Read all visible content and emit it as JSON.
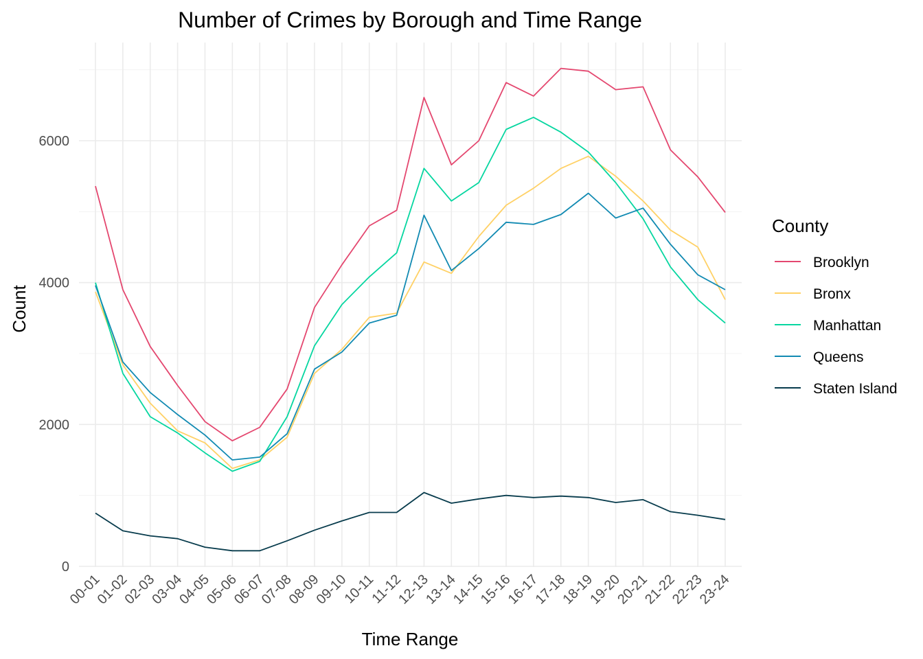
{
  "chart_data": {
    "type": "line",
    "title": "Number of Crimes by Borough and Time Range",
    "xlabel": "Time Range",
    "ylabel": "Count",
    "ylim": [
      0,
      7000
    ],
    "yticks": [
      0,
      2000,
      4000,
      6000
    ],
    "ytick_labels": [
      "0",
      "2000",
      "4000",
      "6000"
    ],
    "grid": true,
    "legend": {
      "title": "County",
      "position": "right"
    },
    "categories": [
      "00-01",
      "01-02",
      "02-03",
      "03-04",
      "04-05",
      "05-06",
      "06-07",
      "07-08",
      "08-09",
      "09-10",
      "10-11",
      "11-12",
      "12-13",
      "13-14",
      "14-15",
      "15-16",
      "16-17",
      "17-18",
      "18-19",
      "19-20",
      "20-21",
      "21-22",
      "22-23",
      "23-24"
    ],
    "series": [
      {
        "name": "Brooklyn",
        "color": "#e4476f",
        "values": [
          5360,
          3900,
          3100,
          2550,
          2040,
          1770,
          1960,
          2500,
          3650,
          4250,
          4800,
          5020,
          6610,
          5660,
          6000,
          6820,
          6630,
          7020,
          6980,
          6720,
          6760,
          5870,
          5490,
          4990
        ]
      },
      {
        "name": "Bronx",
        "color": "#ffd166",
        "values": [
          3870,
          2840,
          2300,
          1910,
          1740,
          1380,
          1500,
          1820,
          2720,
          3060,
          3510,
          3570,
          4290,
          4130,
          4650,
          5090,
          5330,
          5610,
          5780,
          5500,
          5150,
          4740,
          4500,
          3760
        ]
      },
      {
        "name": "Manhattan",
        "color": "#06d6a0",
        "values": [
          4000,
          2720,
          2110,
          1880,
          1600,
          1340,
          1480,
          2110,
          3110,
          3690,
          4080,
          4420,
          5610,
          5150,
          5410,
          6160,
          6330,
          6120,
          5840,
          5410,
          4900,
          4220,
          3760,
          3430
        ]
      },
      {
        "name": "Queens",
        "color": "#118ab2",
        "values": [
          3960,
          2880,
          2450,
          2140,
          1850,
          1500,
          1540,
          1870,
          2780,
          3020,
          3430,
          3540,
          4950,
          4170,
          4480,
          4850,
          4820,
          4960,
          5260,
          4910,
          5050,
          4540,
          4110,
          3900
        ]
      },
      {
        "name": "Staten Island",
        "color": "#073b4c",
        "values": [
          750,
          500,
          430,
          390,
          270,
          220,
          220,
          360,
          510,
          640,
          760,
          760,
          1040,
          890,
          950,
          1000,
          970,
          990,
          970,
          900,
          940,
          770,
          720,
          660
        ]
      }
    ]
  }
}
